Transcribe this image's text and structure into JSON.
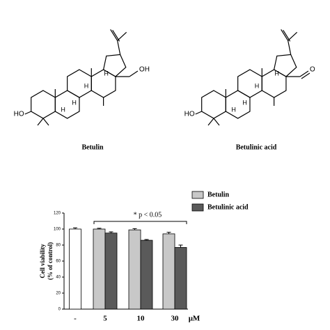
{
  "structures": [
    {
      "name": "Betulin",
      "atoms": [
        "HO",
        "OH",
        "H",
        "H",
        "H",
        "H"
      ]
    },
    {
      "name": "Betulinic acid",
      "atoms": [
        "HO",
        "O",
        "H",
        "H",
        "H",
        "H"
      ]
    }
  ],
  "chart_data": {
    "type": "bar",
    "categories": [
      "-",
      "5",
      "10",
      "30"
    ],
    "x_unit": "μM",
    "ylabel": [
      "Cell viability",
      "(% of control)"
    ],
    "ylim": [
      0,
      120
    ],
    "yticks": [
      0,
      20,
      40,
      60,
      80,
      100,
      120
    ],
    "annotation": "* p < 0.05",
    "legend": "upper right",
    "series": [
      {
        "color": "#ffffff",
        "values": [
          100,
          null,
          null,
          null
        ],
        "errors": [
          1.5,
          null,
          null,
          null
        ]
      },
      {
        "name": "Betulin",
        "color": "#c8c8c8",
        "values": [
          null,
          100,
          99,
          94
        ],
        "errors": [
          null,
          1,
          1.5,
          2
        ]
      },
      {
        "name": "Betulinic acid",
        "color": "#5a5a5a",
        "values": [
          null,
          95,
          86,
          77
        ],
        "errors": [
          null,
          1.5,
          1,
          3
        ]
      }
    ]
  }
}
